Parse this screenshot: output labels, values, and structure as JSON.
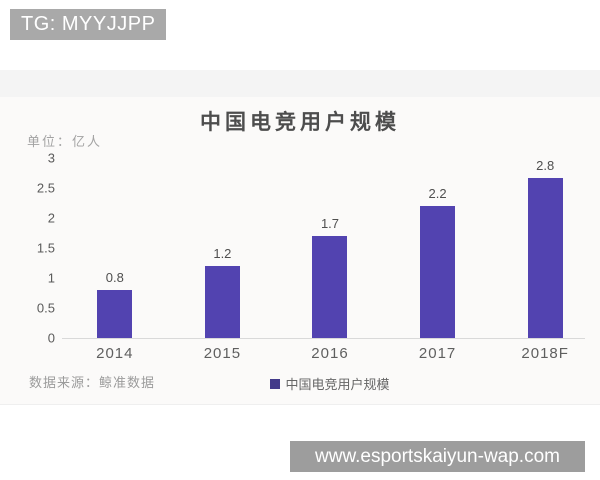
{
  "badge": {
    "label": "TG: MYYJJPP"
  },
  "footer_watermark": {
    "url_text": "www.esportskaiyun-wap.com"
  },
  "chart_data": {
    "type": "bar",
    "title": "中国电竞用户规模",
    "unit_label": "单位：亿人",
    "categories": [
      "2014",
      "2015",
      "2016",
      "2017",
      "2018F"
    ],
    "values": [
      0.8,
      1.2,
      1.7,
      2.2,
      2.8
    ],
    "ylim": [
      0,
      3
    ],
    "yticks": [
      0,
      0.5,
      1,
      1.5,
      2,
      2.5,
      3
    ],
    "grid": false,
    "legend_position": "bottom-center",
    "legend": [
      {
        "label": "中国电竞用户规模",
        "color": "#433a8a"
      }
    ],
    "source": "数据来源：鲸准数据",
    "bar_color": "#5243b0"
  },
  "colors": {
    "badge_bg": "#a9a9a9",
    "watermark_bg": "#9d9d9d",
    "axis_line": "#d9d9d9"
  }
}
